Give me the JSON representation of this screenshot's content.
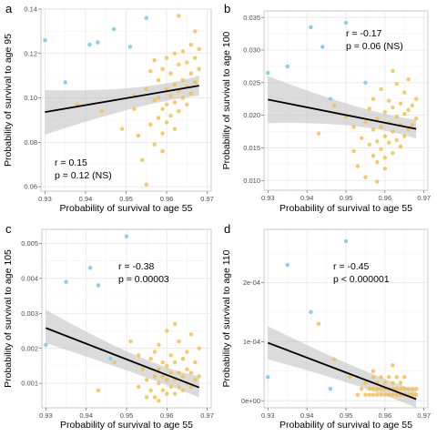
{
  "colors": {
    "point_main": "#F5C04A",
    "point_highlight": "#87CEEB",
    "line": "#000000",
    "ribbon": "#BEBEBE"
  },
  "chart_data": [
    {
      "type": "scatter",
      "panel": "a",
      "xlabel": "Probability of survival to age 55",
      "ylabel": "Probability of survival to age 95",
      "xlim": [
        0.929,
        0.971
      ],
      "ylim": [
        0.058,
        0.14
      ],
      "xticks": [
        "0.93",
        "0.94",
        "0.95",
        "0.96",
        "0.97"
      ],
      "yticks": [
        "0.06",
        "0.08",
        "0.10",
        "0.12",
        "0.14"
      ],
      "annotation": [
        "r = 0.15",
        "p = 0.12 (NS)"
      ],
      "fit": {
        "x": [
          0.93,
          0.968
        ],
        "y": [
          0.0936,
          0.1055
        ],
        "ci_low_start": 0.0835,
        "ci_high_start": 0.1035,
        "ci_low_mid": 0.0985,
        "ci_high_mid": 0.1025,
        "ci_low_end": 0.101,
        "ci_high_end": 0.11
      },
      "highlight_points": [
        [
          0.93,
          0.126
        ],
        [
          0.935,
          0.107
        ],
        [
          0.941,
          0.124
        ],
        [
          0.943,
          0.125
        ],
        [
          0.947,
          0.131
        ],
        [
          0.951,
          0.123
        ],
        [
          0.955,
          0.136
        ]
      ],
      "main_points": [
        [
          0.938,
          0.097
        ],
        [
          0.944,
          0.094
        ],
        [
          0.949,
          0.086
        ],
        [
          0.952,
          0.095
        ],
        [
          0.953,
          0.083
        ],
        [
          0.954,
          0.072
        ],
        [
          0.955,
          0.061
        ],
        [
          0.955,
          0.104
        ],
        [
          0.956,
          0.088
        ],
        [
          0.956,
          0.112
        ],
        [
          0.957,
          0.079
        ],
        [
          0.957,
          0.099
        ],
        [
          0.957,
          0.117
        ],
        [
          0.958,
          0.091
        ],
        [
          0.958,
          0.1
        ],
        [
          0.958,
          0.108
        ],
        [
          0.959,
          0.084
        ],
        [
          0.959,
          0.095
        ],
        [
          0.959,
          0.113
        ],
        [
          0.96,
          0.089
        ],
        [
          0.96,
          0.097
        ],
        [
          0.96,
          0.104
        ],
        [
          0.96,
          0.118
        ],
        [
          0.961,
          0.092
        ],
        [
          0.961,
          0.101
        ],
        [
          0.961,
          0.111
        ],
        [
          0.962,
          0.086
        ],
        [
          0.962,
          0.098
        ],
        [
          0.962,
          0.106
        ],
        [
          0.962,
          0.12
        ],
        [
          0.963,
          0.094
        ],
        [
          0.963,
          0.103
        ],
        [
          0.963,
          0.115
        ],
        [
          0.964,
          0.1
        ],
        [
          0.964,
          0.108
        ],
        [
          0.964,
          0.121
        ],
        [
          0.965,
          0.097
        ],
        [
          0.965,
          0.105
        ],
        [
          0.965,
          0.116
        ],
        [
          0.966,
          0.102
        ],
        [
          0.966,
          0.111
        ],
        [
          0.966,
          0.124
        ],
        [
          0.967,
          0.107
        ],
        [
          0.967,
          0.118
        ],
        [
          0.968,
          0.113
        ],
        [
          0.968,
          0.122
        ],
        [
          0.963,
          0.137
        ],
        [
          0.967,
          0.13
        ],
        [
          0.952,
          0.101
        ],
        [
          0.959,
          0.076
        ]
      ]
    },
    {
      "type": "scatter",
      "panel": "b",
      "xlabel": "Probability of survival to age 55",
      "ylabel": "Probability of survival to age 100",
      "xlim": [
        0.929,
        0.971
      ],
      "ylim": [
        0.0085,
        0.036
      ],
      "xticks": [
        "0.93",
        "0.94",
        "0.95",
        "0.96",
        "0.97"
      ],
      "yticks": [
        "0.010",
        "0.015",
        "0.020",
        "0.025",
        "0.030",
        "0.035"
      ],
      "annotation": [
        "r = -0.17",
        "p = 0.06 (NS)"
      ],
      "fit": {
        "x": [
          0.93,
          0.968
        ],
        "y": [
          0.0224,
          0.0179
        ],
        "ci_low_start": 0.0188,
        "ci_high_start": 0.026,
        "ci_low_mid": 0.0191,
        "ci_high_mid": 0.0203,
        "ci_low_end": 0.0164,
        "ci_high_end": 0.0193
      },
      "highlight_points": [
        [
          0.93,
          0.0265
        ],
        [
          0.935,
          0.0275
        ],
        [
          0.941,
          0.0335
        ],
        [
          0.944,
          0.0305
        ],
        [
          0.946,
          0.0225
        ],
        [
          0.95,
          0.0342
        ],
        [
          0.955,
          0.025
        ]
      ],
      "main_points": [
        [
          0.943,
          0.0172
        ],
        [
          0.947,
          0.0215
        ],
        [
          0.95,
          0.0198
        ],
        [
          0.952,
          0.0145
        ],
        [
          0.953,
          0.0122
        ],
        [
          0.954,
          0.0165
        ],
        [
          0.955,
          0.0105
        ],
        [
          0.955,
          0.019
        ],
        [
          0.956,
          0.0155
        ],
        [
          0.956,
          0.021
        ],
        [
          0.957,
          0.0138
        ],
        [
          0.957,
          0.0178
        ],
        [
          0.957,
          0.0225
        ],
        [
          0.958,
          0.0128
        ],
        [
          0.958,
          0.016
        ],
        [
          0.958,
          0.0195
        ],
        [
          0.959,
          0.0148
        ],
        [
          0.959,
          0.0182
        ],
        [
          0.959,
          0.024
        ],
        [
          0.96,
          0.0135
        ],
        [
          0.96,
          0.0168
        ],
        [
          0.96,
          0.0205
        ],
        [
          0.961,
          0.0158
        ],
        [
          0.961,
          0.0188
        ],
        [
          0.961,
          0.0222
        ],
        [
          0.962,
          0.0142
        ],
        [
          0.962,
          0.0175
        ],
        [
          0.962,
          0.0212
        ],
        [
          0.963,
          0.0162
        ],
        [
          0.963,
          0.0198
        ],
        [
          0.963,
          0.0248
        ],
        [
          0.964,
          0.0152
        ],
        [
          0.964,
          0.0185
        ],
        [
          0.964,
          0.0218
        ],
        [
          0.965,
          0.0168
        ],
        [
          0.965,
          0.0202
        ],
        [
          0.965,
          0.0235
        ],
        [
          0.966,
          0.0178
        ],
        [
          0.966,
          0.0208
        ],
        [
          0.967,
          0.0185
        ],
        [
          0.967,
          0.0215
        ],
        [
          0.968,
          0.0195
        ],
        [
          0.968,
          0.0225
        ],
        [
          0.962,
          0.0268
        ],
        [
          0.958,
          0.0098
        ],
        [
          0.966,
          0.0255
        ],
        [
          0.952,
          0.0182
        ],
        [
          0.96,
          0.0118
        ]
      ]
    },
    {
      "type": "scatter",
      "panel": "c",
      "xlabel": "Probability of survival to age 55",
      "ylabel": "Probability of survival to age 105",
      "xlim": [
        0.929,
        0.971
      ],
      "ylim": [
        0.0003,
        0.0054
      ],
      "xticks": [
        "0.93",
        "0.94",
        "0.95",
        "0.96",
        "0.97"
      ],
      "yticks": [
        "0.001",
        "0.002",
        "0.003",
        "0.004",
        "0.005"
      ],
      "annotation": [
        "r = -0.38",
        "p = 0.00003"
      ],
      "fit": {
        "x": [
          0.93,
          0.968
        ],
        "y": [
          0.00258,
          0.00088
        ],
        "ci_low_start": 0.00215,
        "ci_high_start": 0.0031,
        "ci_low_mid": 0.0012,
        "ci_high_mid": 0.00148,
        "ci_low_end": 0.0006,
        "ci_high_end": 0.0012
      },
      "highlight_points": [
        [
          0.93,
          0.0021
        ],
        [
          0.935,
          0.0039
        ],
        [
          0.941,
          0.0043
        ],
        [
          0.943,
          0.0038
        ],
        [
          0.946,
          0.0017
        ],
        [
          0.95,
          0.0052
        ]
      ],
      "main_points": [
        [
          0.943,
          0.0008
        ],
        [
          0.947,
          0.0016
        ],
        [
          0.951,
          0.0022
        ],
        [
          0.953,
          0.0009
        ],
        [
          0.954,
          0.0014
        ],
        [
          0.955,
          0.0006
        ],
        [
          0.955,
          0.0011
        ],
        [
          0.956,
          0.0017
        ],
        [
          0.956,
          0.0008
        ],
        [
          0.957,
          0.0012
        ],
        [
          0.957,
          0.0019
        ],
        [
          0.957,
          0.0006
        ],
        [
          0.958,
          0.001
        ],
        [
          0.958,
          0.0014
        ],
        [
          0.958,
          0.0021
        ],
        [
          0.959,
          0.0008
        ],
        [
          0.959,
          0.0012
        ],
        [
          0.959,
          0.0016
        ],
        [
          0.96,
          0.0007
        ],
        [
          0.96,
          0.0011
        ],
        [
          0.96,
          0.0015
        ],
        [
          0.96,
          0.0025
        ],
        [
          0.961,
          0.0009
        ],
        [
          0.961,
          0.0013
        ],
        [
          0.961,
          0.0018
        ],
        [
          0.962,
          0.0007
        ],
        [
          0.962,
          0.0011
        ],
        [
          0.962,
          0.0016
        ],
        [
          0.963,
          0.0009
        ],
        [
          0.963,
          0.0013
        ],
        [
          0.963,
          0.0022
        ],
        [
          0.964,
          0.0008
        ],
        [
          0.964,
          0.0012
        ],
        [
          0.964,
          0.0017
        ],
        [
          0.965,
          0.001
        ],
        [
          0.965,
          0.0014
        ],
        [
          0.965,
          0.0019
        ],
        [
          0.966,
          0.0009
        ],
        [
          0.966,
          0.0013
        ],
        [
          0.966,
          0.0024
        ],
        [
          0.967,
          0.0011
        ],
        [
          0.967,
          0.0016
        ],
        [
          0.968,
          0.0012
        ],
        [
          0.968,
          0.002
        ],
        [
          0.962,
          0.0027
        ],
        [
          0.958,
          0.0005
        ],
        [
          0.953,
          0.0018
        ]
      ]
    },
    {
      "type": "scatter",
      "panel": "d",
      "xlabel": "Probability of survival to age 55",
      "ylabel": "Probability of survival to age 110",
      "xlim": [
        0.929,
        0.971
      ],
      "ylim": [
        -1.2e-05,
        0.00029
      ],
      "xticks": [
        "0.93",
        "0.94",
        "0.95",
        "0.96",
        "0.97"
      ],
      "yticks": [
        "0e+00",
        "1e-04",
        "2e-04",
        "3e-04"
      ],
      "annotation": [
        "r = -0.45",
        "p < 0.000001"
      ],
      "fit": {
        "x": [
          0.93,
          0.968
        ],
        "y": [
          9.8e-05,
          2.5e-06
        ],
        "ci_low_start": 7e-05,
        "ci_high_start": 0.000126,
        "ci_low_mid": 2.5e-05,
        "ci_high_mid": 4.5e-05,
        "ci_low_end": -1.2e-05,
        "ci_high_end": 1.8e-05
      },
      "highlight_points": [
        [
          0.93,
          4e-05
        ],
        [
          0.935,
          0.00023
        ],
        [
          0.941,
          0.00015
        ],
        [
          0.946,
          2e-05
        ],
        [
          0.95,
          0.00027
        ]
      ],
      "main_points": [
        [
          0.943,
          0.00013
        ],
        [
          0.947,
          7e-05
        ],
        [
          0.951,
          4e-05
        ],
        [
          0.953,
          1e-05
        ],
        [
          0.954,
          2e-05
        ],
        [
          0.955,
          1e-05
        ],
        [
          0.955,
          3e-05
        ],
        [
          0.956,
          2e-05
        ],
        [
          0.956,
          1e-05
        ],
        [
          0.957,
          2e-05
        ],
        [
          0.957,
          4e-05
        ],
        [
          0.957,
          1e-05
        ],
        [
          0.958,
          2e-05
        ],
        [
          0.958,
          1e-05
        ],
        [
          0.958,
          3e-05
        ],
        [
          0.959,
          1e-05
        ],
        [
          0.959,
          2e-05
        ],
        [
          0.959,
          4e-05
        ],
        [
          0.96,
          1e-05
        ],
        [
          0.96,
          2e-05
        ],
        [
          0.96,
          3e-05
        ],
        [
          0.961,
          1e-05
        ],
        [
          0.961,
          2e-05
        ],
        [
          0.961,
          4e-05
        ],
        [
          0.962,
          1e-05
        ],
        [
          0.962,
          2e-05
        ],
        [
          0.962,
          3e-05
        ],
        [
          0.963,
          1e-05
        ],
        [
          0.963,
          2e-05
        ],
        [
          0.963,
          4e-05
        ],
        [
          0.964,
          1e-05
        ],
        [
          0.964,
          2e-05
        ],
        [
          0.964,
          3e-05
        ],
        [
          0.965,
          1e-05
        ],
        [
          0.965,
          2e-05
        ],
        [
          0.965,
          4e-05
        ],
        [
          0.966,
          1e-05
        ],
        [
          0.966,
          2e-05
        ],
        [
          0.967,
          1e-05
        ],
        [
          0.967,
          2e-05
        ],
        [
          0.968,
          1e-05
        ],
        [
          0.968,
          2e-05
        ],
        [
          0.962,
          6e-05
        ],
        [
          0.957,
          5e-05
        ]
      ]
    }
  ]
}
